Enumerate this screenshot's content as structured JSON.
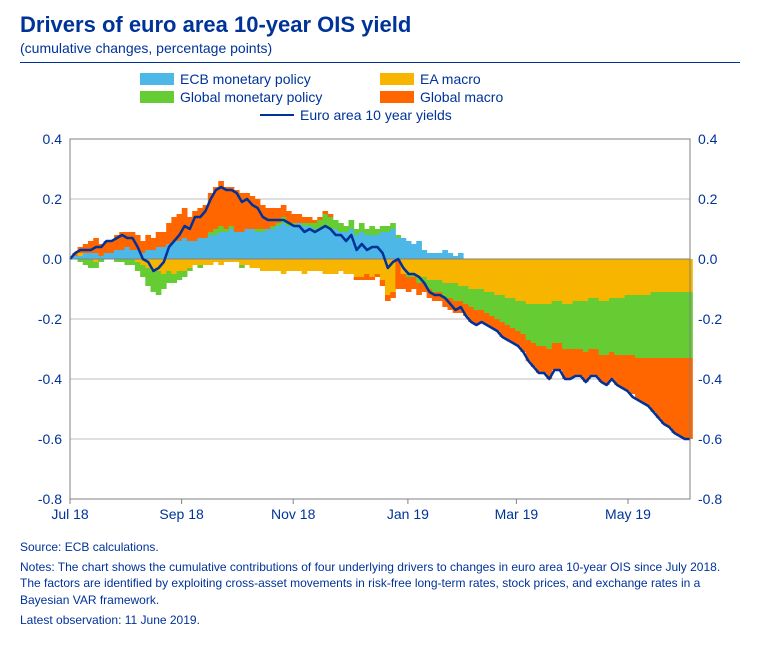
{
  "title": "Drivers of euro area 10-year OIS yield",
  "subtitle": "(cumulative changes, percentage points)",
  "legend": [
    {
      "label": "ECB monetary policy",
      "color": "#4db8e8",
      "type": "box"
    },
    {
      "label": "EA macro",
      "color": "#f7b500",
      "type": "box"
    },
    {
      "label": "Global monetary policy",
      "color": "#66cc33",
      "type": "box"
    },
    {
      "label": "Global macro",
      "color": "#ff6600",
      "type": "box"
    },
    {
      "label": "Euro area 10 year yields",
      "color": "#003399",
      "type": "line"
    }
  ],
  "chart": {
    "type": "stacked-bar-plus-line",
    "background_color": "#ffffff",
    "plot_border_color": "#808080",
    "grid_color": "#bfbfbf",
    "y_axis": {
      "min": -0.8,
      "max": 0.4,
      "step": 0.2,
      "ticks": [
        "0.4",
        "0.2",
        "0.0",
        "-0.2",
        "-0.4",
        "-0.6",
        "-0.8"
      ],
      "label_fontsize": 14,
      "label_color": "#003399"
    },
    "x_axis": {
      "labels": [
        "Jul 18",
        "Sep 18",
        "Nov 18",
        "Jan 19",
        "Mar 19",
        "May 19"
      ],
      "positions": [
        0,
        0.18,
        0.36,
        0.545,
        0.72,
        0.9
      ],
      "label_fontsize": 14,
      "label_color": "#003399"
    },
    "n_points": 120,
    "series": {
      "ecb_mp": {
        "color": "#4db8e8",
        "values": [
          0.0,
          0.01,
          0.01,
          0.02,
          0.02,
          0.02,
          0.01,
          0.02,
          0.02,
          0.03,
          0.03,
          0.04,
          0.03,
          0.03,
          0.02,
          0.03,
          0.03,
          0.04,
          0.04,
          0.05,
          0.06,
          0.06,
          0.07,
          0.06,
          0.06,
          0.07,
          0.07,
          0.08,
          0.08,
          0.09,
          0.09,
          0.1,
          0.09,
          0.09,
          0.1,
          0.1,
          0.09,
          0.09,
          0.1,
          0.1,
          0.11,
          0.12,
          0.11,
          0.11,
          0.12,
          0.11,
          0.11,
          0.1,
          0.1,
          0.11,
          0.1,
          0.1,
          0.09,
          0.09,
          0.1,
          0.08,
          0.09,
          0.08,
          0.08,
          0.08,
          0.09,
          0.09,
          0.1,
          0.07,
          0.07,
          0.06,
          0.05,
          0.06,
          0.03,
          0.02,
          0.02,
          0.02,
          0.03,
          0.02,
          0.01,
          0.02,
          0.0,
          0.0,
          0.0,
          0.0,
          0.0,
          0.0,
          0.0,
          0.0,
          0.0,
          0.0,
          0.0,
          0.0,
          0.0,
          0.0,
          0.0,
          0.0,
          0.0,
          0.0,
          0.0,
          0.0,
          0.0,
          0.0,
          0.0,
          0.0,
          0.0,
          0.0,
          0.0,
          0.0,
          0.0,
          0.0,
          0.0,
          0.0,
          0.0,
          0.0,
          0.0,
          0.0,
          0.0,
          0.0,
          0.0,
          0.0,
          0.0,
          0.0,
          0.0,
          0.0
        ]
      },
      "ea_macro": {
        "color": "#f7b500",
        "values": [
          0.0,
          0.0,
          0.01,
          0.0,
          0.0,
          -0.01,
          0.0,
          0.0,
          0.0,
          0.0,
          0.0,
          0.0,
          0.0,
          -0.01,
          -0.02,
          -0.03,
          -0.04,
          -0.04,
          -0.05,
          -0.04,
          -0.05,
          -0.04,
          -0.04,
          -0.03,
          -0.02,
          -0.02,
          -0.02,
          -0.02,
          -0.01,
          -0.02,
          -0.01,
          -0.01,
          -0.01,
          -0.02,
          -0.02,
          -0.03,
          -0.03,
          -0.04,
          -0.04,
          -0.04,
          -0.04,
          -0.05,
          -0.04,
          -0.04,
          -0.04,
          -0.05,
          -0.04,
          -0.04,
          -0.04,
          -0.05,
          -0.05,
          -0.05,
          -0.04,
          -0.05,
          -0.05,
          -0.06,
          -0.06,
          -0.05,
          -0.06,
          -0.05,
          -0.07,
          -0.12,
          -0.11,
          -0.05,
          -0.05,
          -0.05,
          -0.05,
          -0.06,
          -0.06,
          -0.07,
          -0.07,
          -0.07,
          -0.08,
          -0.08,
          -0.08,
          -0.09,
          -0.09,
          -0.1,
          -0.1,
          -0.1,
          -0.11,
          -0.11,
          -0.12,
          -0.12,
          -0.13,
          -0.13,
          -0.14,
          -0.14,
          -0.15,
          -0.15,
          -0.15,
          -0.15,
          -0.15,
          -0.14,
          -0.14,
          -0.15,
          -0.15,
          -0.14,
          -0.14,
          -0.14,
          -0.13,
          -0.13,
          -0.14,
          -0.14,
          -0.13,
          -0.13,
          -0.13,
          -0.12,
          -0.12,
          -0.12,
          -0.12,
          -0.12,
          -0.11,
          -0.11,
          -0.11,
          -0.11,
          -0.11,
          -0.11,
          -0.11,
          -0.11
        ]
      },
      "global_mp": {
        "color": "#66cc33",
        "values": [
          0.0,
          0.0,
          -0.01,
          -0.02,
          -0.03,
          -0.02,
          -0.01,
          0.0,
          0.0,
          -0.01,
          -0.01,
          -0.02,
          -0.02,
          -0.03,
          -0.04,
          -0.06,
          -0.07,
          -0.08,
          -0.05,
          -0.04,
          -0.03,
          -0.03,
          -0.02,
          -0.01,
          0.0,
          -0.01,
          0.0,
          0.01,
          0.02,
          0.02,
          0.01,
          0.01,
          0.0,
          -0.01,
          0.0,
          0.0,
          0.01,
          0.01,
          0.0,
          0.01,
          0.01,
          0.02,
          0.01,
          0.01,
          0.0,
          0.01,
          0.01,
          0.02,
          0.03,
          0.04,
          0.04,
          0.03,
          0.03,
          0.02,
          0.03,
          0.02,
          0.03,
          0.02,
          0.03,
          0.02,
          0.02,
          0.02,
          0.02,
          0.01,
          0.0,
          -0.01,
          -0.01,
          -0.02,
          -0.02,
          -0.03,
          -0.04,
          -0.04,
          -0.05,
          -0.05,
          -0.06,
          -0.05,
          -0.06,
          -0.06,
          -0.07,
          -0.07,
          -0.07,
          -0.08,
          -0.08,
          -0.09,
          -0.09,
          -0.1,
          -0.1,
          -0.11,
          -0.12,
          -0.13,
          -0.14,
          -0.14,
          -0.15,
          -0.14,
          -0.14,
          -0.15,
          -0.15,
          -0.16,
          -0.16,
          -0.17,
          -0.17,
          -0.17,
          -0.18,
          -0.18,
          -0.18,
          -0.19,
          -0.19,
          -0.2,
          -0.2,
          -0.21,
          -0.21,
          -0.21,
          -0.22,
          -0.22,
          -0.22,
          -0.22,
          -0.22,
          -0.22,
          -0.22,
          -0.22
        ]
      },
      "global_macro": {
        "color": "#ff6600",
        "values": [
          0.0,
          0.01,
          0.02,
          0.03,
          0.04,
          0.05,
          0.04,
          0.04,
          0.04,
          0.05,
          0.06,
          0.05,
          0.06,
          0.05,
          0.04,
          0.05,
          0.04,
          0.05,
          0.05,
          0.07,
          0.08,
          0.09,
          0.1,
          0.08,
          0.1,
          0.1,
          0.11,
          0.13,
          0.14,
          0.15,
          0.14,
          0.13,
          0.14,
          0.13,
          0.12,
          0.11,
          0.1,
          0.08,
          0.07,
          0.06,
          0.05,
          0.04,
          0.04,
          0.03,
          0.03,
          0.02,
          0.02,
          0.01,
          0.01,
          0.01,
          0.01,
          0.0,
          0.0,
          0.0,
          0.0,
          -0.01,
          -0.01,
          -0.02,
          -0.01,
          -0.01,
          -0.02,
          -0.02,
          -0.02,
          -0.03,
          -0.05,
          -0.05,
          -0.04,
          -0.04,
          -0.03,
          -0.03,
          -0.03,
          -0.03,
          -0.03,
          -0.04,
          -0.04,
          -0.04,
          -0.04,
          -0.05,
          -0.05,
          -0.04,
          -0.04,
          -0.04,
          -0.04,
          -0.05,
          -0.05,
          -0.05,
          -0.05,
          -0.06,
          -0.07,
          -0.08,
          -0.09,
          -0.09,
          -0.1,
          -0.09,
          -0.09,
          -0.1,
          -0.1,
          -0.09,
          -0.09,
          -0.1,
          -0.09,
          -0.09,
          -0.09,
          -0.1,
          -0.09,
          -0.1,
          -0.11,
          -0.12,
          -0.13,
          -0.14,
          -0.15,
          -0.16,
          -0.18,
          -0.2,
          -0.22,
          -0.23,
          -0.25,
          -0.26,
          -0.27,
          -0.27
        ]
      }
    },
    "jan_offset_idx": 63,
    "jan_offset_value": -0.1,
    "line": {
      "color": "#003399",
      "width": 2.5,
      "values": [
        0.0,
        0.02,
        0.03,
        0.03,
        0.03,
        0.04,
        0.04,
        0.06,
        0.06,
        0.07,
        0.08,
        0.07,
        0.07,
        0.04,
        0.0,
        -0.01,
        -0.04,
        -0.03,
        -0.01,
        0.04,
        0.06,
        0.08,
        0.11,
        0.1,
        0.14,
        0.14,
        0.16,
        0.2,
        0.23,
        0.24,
        0.23,
        0.23,
        0.22,
        0.19,
        0.2,
        0.18,
        0.17,
        0.14,
        0.13,
        0.13,
        0.13,
        0.13,
        0.12,
        0.11,
        0.11,
        0.09,
        0.1,
        0.09,
        0.1,
        0.11,
        0.1,
        0.08,
        0.08,
        0.06,
        0.08,
        0.03,
        0.05,
        0.03,
        0.04,
        0.04,
        0.02,
        -0.03,
        -0.01,
        0.0,
        -0.03,
        -0.05,
        -0.05,
        -0.06,
        -0.08,
        -0.11,
        -0.12,
        -0.12,
        -0.13,
        -0.15,
        -0.17,
        -0.16,
        -0.19,
        -0.21,
        -0.22,
        -0.21,
        -0.22,
        -0.23,
        -0.24,
        -0.26,
        -0.27,
        -0.28,
        -0.29,
        -0.31,
        -0.34,
        -0.36,
        -0.38,
        -0.38,
        -0.4,
        -0.37,
        -0.37,
        -0.4,
        -0.4,
        -0.39,
        -0.39,
        -0.41,
        -0.39,
        -0.39,
        -0.41,
        -0.42,
        -0.4,
        -0.42,
        -0.43,
        -0.44,
        -0.46,
        -0.47,
        -0.48,
        -0.49,
        -0.51,
        -0.53,
        -0.55,
        -0.56,
        -0.58,
        -0.59,
        -0.6,
        -0.6
      ]
    }
  },
  "footer": {
    "source": "Source: ECB calculations.",
    "notes": "Notes: The chart shows the cumulative contributions of four underlying drivers to changes in euro area 10-year OIS since July 2018. The factors are identified by exploiting cross-asset movements in risk-free long-term rates, stock prices, and exchange rates in a Bayesian VAR framework.",
    "latest": "Latest observation: 11 June 2019."
  }
}
